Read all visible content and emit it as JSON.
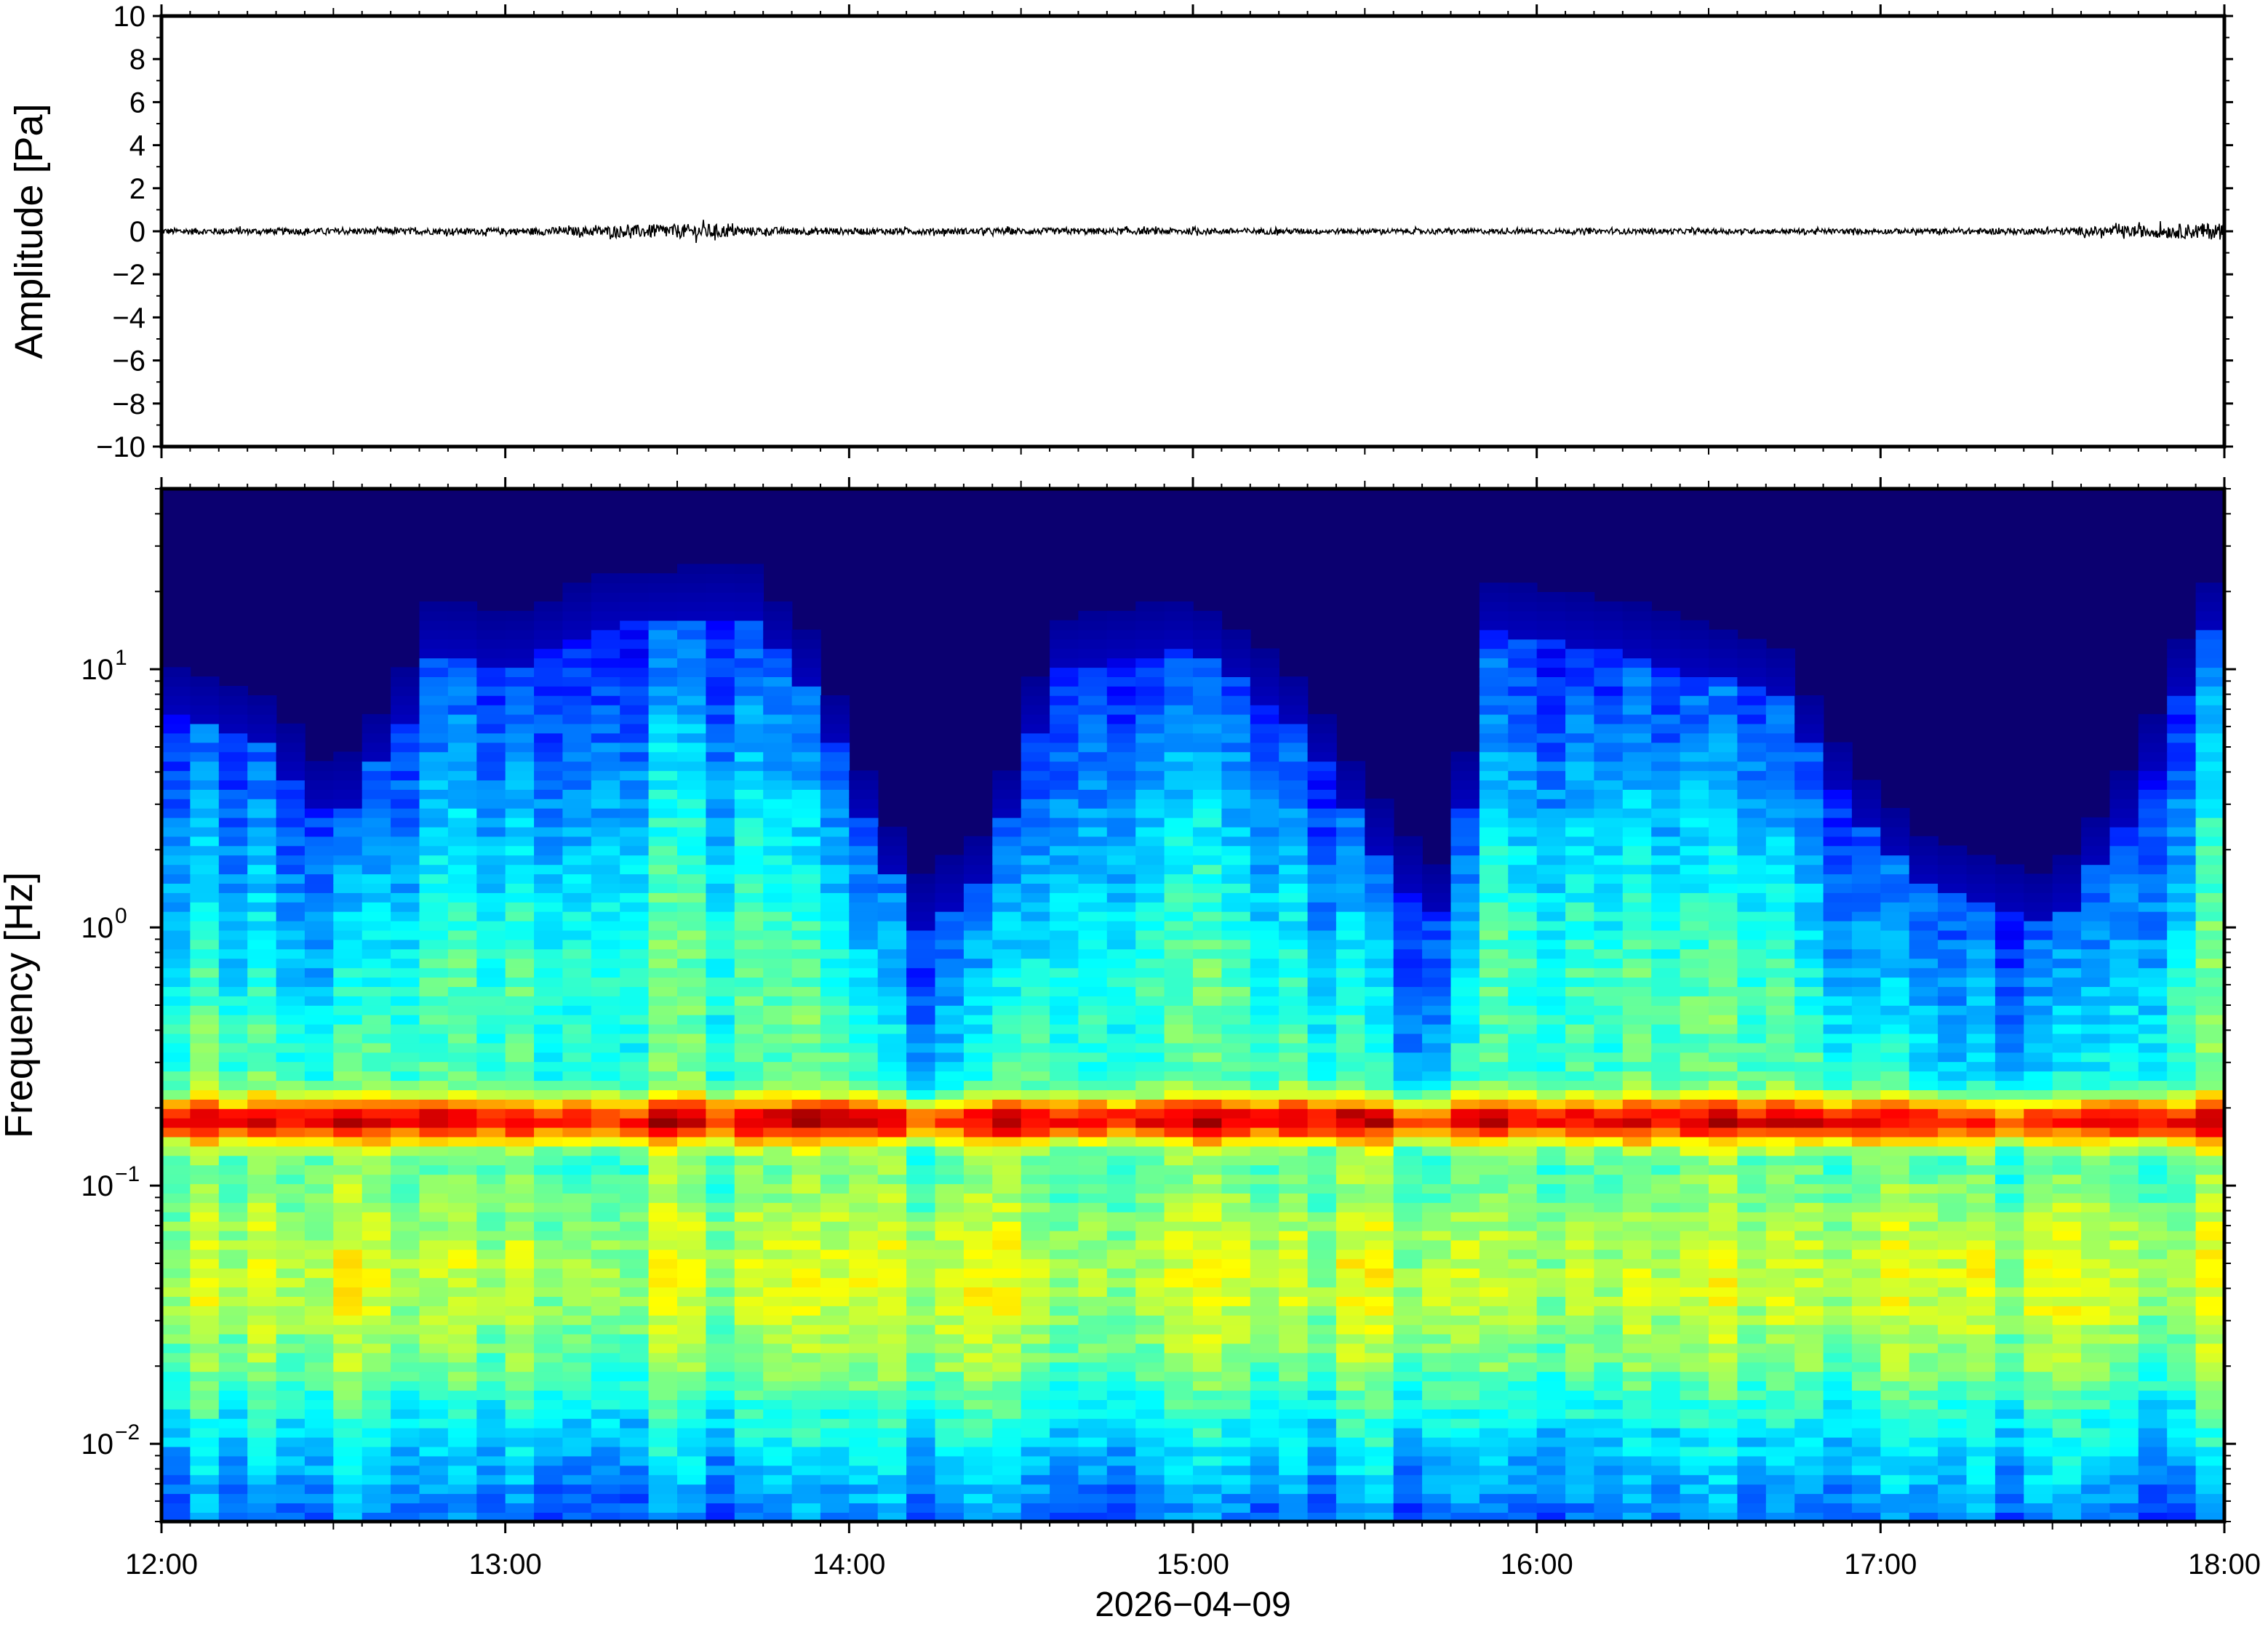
{
  "chart_data": [
    {
      "type": "line",
      "panel": "waveform",
      "ylabel": "Amplitude [Pa]",
      "ylim": [
        -10,
        10
      ],
      "yticks": [
        10,
        8,
        6,
        4,
        2,
        0,
        -2,
        -4,
        -6,
        -8,
        -10
      ],
      "ytick_labels": [
        "10",
        "8",
        "6",
        "4",
        "2",
        "0",
        "−2",
        "−4",
        "−6",
        "−8",
        "−10"
      ],
      "grid": false,
      "series": [
        {
          "color": "#000000",
          "x_hours": [
            12.0,
            12.5,
            13.0,
            13.2,
            13.4,
            13.6,
            13.7,
            14.0,
            14.5,
            15.0,
            15.5,
            16.0,
            16.5,
            17.0,
            17.5,
            17.9,
            18.0
          ],
          "envelope_pa": [
            0.15,
            0.15,
            0.15,
            0.2,
            0.3,
            0.35,
            0.2,
            0.15,
            0.15,
            0.15,
            0.12,
            0.12,
            0.12,
            0.12,
            0.15,
            0.35,
            0.4
          ]
        }
      ]
    },
    {
      "type": "heatmap",
      "panel": "spectrogram",
      "ylabel": "Frequency [Hz]",
      "xlabel": "2026−04−09",
      "y_scale": "log",
      "ylim_hz": [
        0.005,
        50
      ],
      "yticks": [
        {
          "base": "10",
          "exp": "1"
        },
        {
          "base": "10",
          "exp": "0"
        },
        {
          "base": "10",
          "exp": "−1"
        },
        {
          "base": "10",
          "exp": "−2"
        }
      ],
      "xlim_hours": [
        12,
        18
      ],
      "xtick_labels": [
        "12:00",
        "13:00",
        "14:00",
        "15:00",
        "16:00",
        "17:00",
        "18:00"
      ],
      "colormap": "jet",
      "colors": {
        "background": "#0b0070",
        "microseism_band": "#ff7a30",
        "low_freq": "#2aa8ff"
      },
      "microseism_peak_hz": 0.18,
      "upper_noise_edge_hz": [
        [
          12.0,
          7.0
        ],
        [
          12.3,
          5.0
        ],
        [
          12.5,
          2.5
        ],
        [
          12.7,
          6.0
        ],
        [
          12.8,
          12.0
        ],
        [
          13.0,
          10.0
        ],
        [
          13.3,
          15.0
        ],
        [
          13.7,
          16.0
        ],
        [
          13.9,
          8.0
        ],
        [
          14.05,
          2.5
        ],
        [
          14.2,
          1.0
        ],
        [
          14.4,
          1.5
        ],
        [
          14.6,
          10.0
        ],
        [
          15.0,
          12.0
        ],
        [
          15.3,
          6.0
        ],
        [
          15.6,
          1.5
        ],
        [
          15.75,
          1.0
        ],
        [
          15.85,
          14.0
        ],
        [
          16.2,
          12.0
        ],
        [
          16.7,
          8.0
        ],
        [
          16.9,
          3.0
        ],
        [
          17.1,
          1.5
        ],
        [
          17.5,
          1.0
        ],
        [
          17.75,
          3.0
        ],
        [
          17.9,
          10.0
        ],
        [
          18.0,
          18.0
        ]
      ]
    }
  ]
}
